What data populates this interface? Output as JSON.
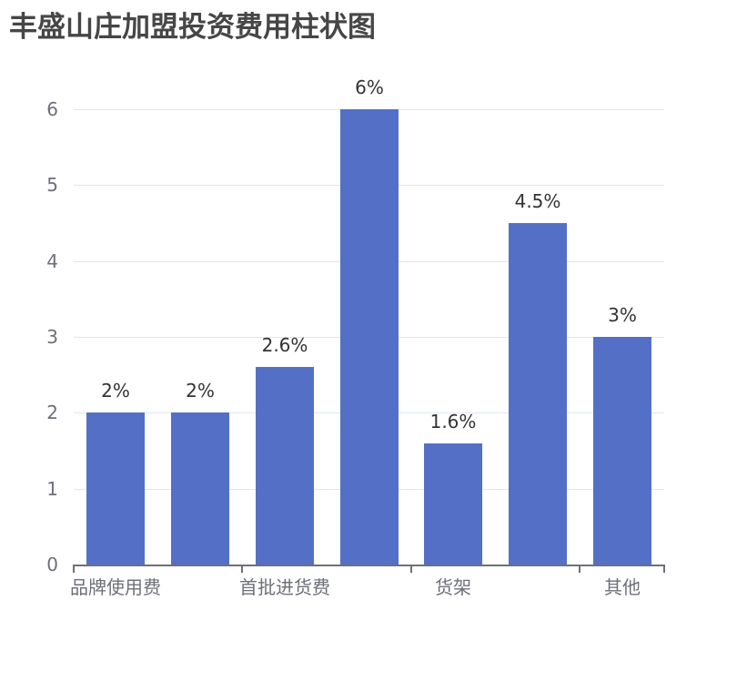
{
  "title": "丰盛山庄加盟投资费用柱状图",
  "chart_data": {
    "type": "bar",
    "title": "丰盛山庄加盟投资费用柱状图",
    "categories": [
      "品牌使用费",
      "",
      "首批进货费",
      "",
      "货架",
      "",
      "其他"
    ],
    "visible_x_tick_labels": [
      "品牌使用费",
      "首批进货费",
      "货架",
      "其他"
    ],
    "values": [
      2,
      2,
      2.6,
      6,
      1.6,
      4.5,
      3
    ],
    "data_labels": [
      "2%",
      "2%",
      "2.6%",
      "6%",
      "1.6%",
      "4.5%",
      "3%"
    ],
    "xlabel": "",
    "ylabel": "",
    "ylim": [
      0,
      6
    ],
    "yticks": [
      "0",
      "1",
      "2",
      "3",
      "4",
      "5",
      "6"
    ],
    "grid": true,
    "bar_color": "#5470c6"
  },
  "axis": {
    "y_ticks": [
      "0",
      "1",
      "2",
      "3",
      "4",
      "5",
      "6"
    ],
    "x_labels": [
      {
        "text": "品牌使用费",
        "index": 0
      },
      {
        "text": "首批进货费",
        "index": 2
      },
      {
        "text": "货架",
        "index": 4
      },
      {
        "text": "其他",
        "index": 6
      }
    ]
  },
  "bars": [
    {
      "label": "2%"
    },
    {
      "label": "2%"
    },
    {
      "label": "2.6%"
    },
    {
      "label": "6%"
    },
    {
      "label": "1.6%"
    },
    {
      "label": "4.5%"
    },
    {
      "label": "3%"
    }
  ]
}
